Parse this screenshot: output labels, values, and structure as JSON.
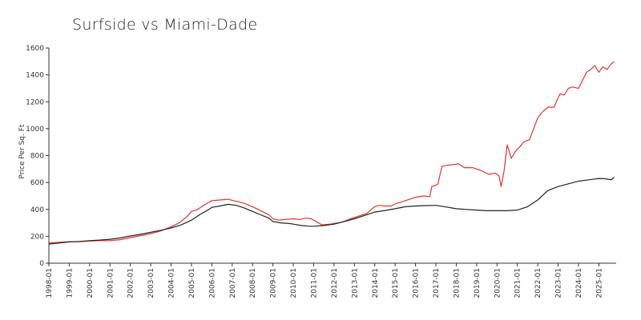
{
  "chart_data": {
    "type": "line",
    "title": "Surfside vs Miami-Dade",
    "xlabel": "",
    "ylabel": "Price Per Sq. Ft",
    "ylim": [
      0,
      1600
    ],
    "yticks": [
      0,
      200,
      400,
      600,
      800,
      1000,
      1200,
      1400,
      1600
    ],
    "xlim": [
      1998.0,
      2025.85
    ],
    "xtick_labels": [
      "1998-01",
      "1999-01",
      "2000-01",
      "2001-01",
      "2002-01",
      "2003-01",
      "2004-01",
      "2005-01",
      "2006-01",
      "2007-01",
      "2008-01",
      "2009-01",
      "2010-01",
      "2011-01",
      "2012-01",
      "2013-01",
      "2014-01",
      "2015-01",
      "2016-01",
      "2017-01",
      "2018-01",
      "2019-01",
      "2020-01",
      "2021-01",
      "2022-01",
      "2023-01",
      "2024-01",
      "2025-01"
    ],
    "grid": false,
    "legend": "none",
    "series": [
      {
        "color": "#e8312f",
        "x": [
          1998.0,
          1998.5,
          1999.0,
          1999.5,
          2000.0,
          2000.5,
          2001.0,
          2001.5,
          2002.0,
          2002.5,
          2003.0,
          2003.5,
          2004.0,
          2004.4,
          2004.8,
          2005.0,
          2005.3,
          2005.6,
          2006.0,
          2006.4,
          2006.8,
          2007.2,
          2007.6,
          2008.0,
          2008.4,
          2008.8,
          2009.0,
          2009.3,
          2009.6,
          2010.0,
          2010.3,
          2010.6,
          2010.9,
          2011.0,
          2011.4,
          2011.8,
          2012.0,
          2012.4,
          2012.8,
          2013.2,
          2013.6,
          2014.0,
          2014.2,
          2014.5,
          2014.8,
          2015.0,
          2015.4,
          2015.8,
          2016.0,
          2016.4,
          2016.7,
          2016.8,
          2017.0,
          2017.1,
          2017.3,
          2017.6,
          2018.0,
          2018.1,
          2018.4,
          2018.8,
          2019.0,
          2019.2,
          2019.6,
          2019.9,
          2020.0,
          2020.1,
          2020.2,
          2020.35,
          2020.5,
          2020.7,
          2020.9,
          2021.0,
          2021.1,
          2021.3,
          2021.6,
          2021.8,
          2022.0,
          2022.2,
          2022.5,
          2022.8,
          2023.0,
          2023.1,
          2023.3,
          2023.5,
          2023.7,
          2024.0,
          2024.2,
          2024.4,
          2024.6,
          2024.8,
          2025.0,
          2025.2,
          2025.4,
          2025.6,
          2025.75
        ],
        "values": [
          150,
          155,
          160,
          160,
          165,
          168,
          168,
          175,
          190,
          205,
          220,
          240,
          270,
          300,
          350,
          385,
          400,
          430,
          465,
          470,
          475,
          460,
          445,
          420,
          390,
          360,
          330,
          320,
          325,
          330,
          325,
          335,
          330,
          320,
          285,
          290,
          295,
          305,
          330,
          350,
          370,
          420,
          430,
          425,
          425,
          440,
          460,
          480,
          490,
          500,
          495,
          570,
          580,
          590,
          720,
          730,
          735,
          740,
          710,
          710,
          700,
          690,
          660,
          670,
          660,
          650,
          570,
          690,
          880,
          780,
          830,
          850,
          860,
          900,
          920,
          1000,
          1080,
          1120,
          1160,
          1160,
          1230,
          1260,
          1250,
          1300,
          1310,
          1300,
          1360,
          1420,
          1440,
          1470,
          1420,
          1460,
          1440,
          1480,
          1500
        ]
      },
      {
        "color": "#222222",
        "x": [
          1998.0,
          1998.5,
          1999.0,
          1999.5,
          2000.0,
          2000.5,
          2001.0,
          2001.5,
          2002.0,
          2002.5,
          2003.0,
          2003.5,
          2004.0,
          2004.5,
          2005.0,
          2005.4,
          2005.8,
          2006.0,
          2006.4,
          2006.8,
          2007.2,
          2007.6,
          2008.0,
          2008.4,
          2008.8,
          2009.0,
          2009.4,
          2009.8,
          2010.0,
          2010.4,
          2010.8,
          2011.0,
          2011.5,
          2012.0,
          2012.5,
          2013.0,
          2013.5,
          2014.0,
          2014.5,
          2015.0,
          2015.5,
          2016.0,
          2016.5,
          2017.0,
          2017.5,
          2018.0,
          2018.5,
          2019.0,
          2019.5,
          2020.0,
          2020.5,
          2021.0,
          2021.5,
          2022.0,
          2022.5,
          2023.0,
          2023.5,
          2024.0,
          2024.5,
          2025.0,
          2025.3,
          2025.6,
          2025.75
        ],
        "values": [
          142,
          150,
          158,
          162,
          168,
          172,
          178,
          188,
          202,
          215,
          230,
          245,
          262,
          285,
          320,
          360,
          395,
          415,
          425,
          438,
          430,
          410,
          385,
          360,
          335,
          310,
          300,
          295,
          290,
          280,
          275,
          275,
          280,
          290,
          310,
          330,
          355,
          380,
          392,
          405,
          420,
          425,
          428,
          430,
          418,
          405,
          400,
          395,
          390,
          390,
          390,
          395,
          420,
          470,
          540,
          570,
          590,
          610,
          620,
          630,
          628,
          620,
          640
        ]
      }
    ]
  }
}
